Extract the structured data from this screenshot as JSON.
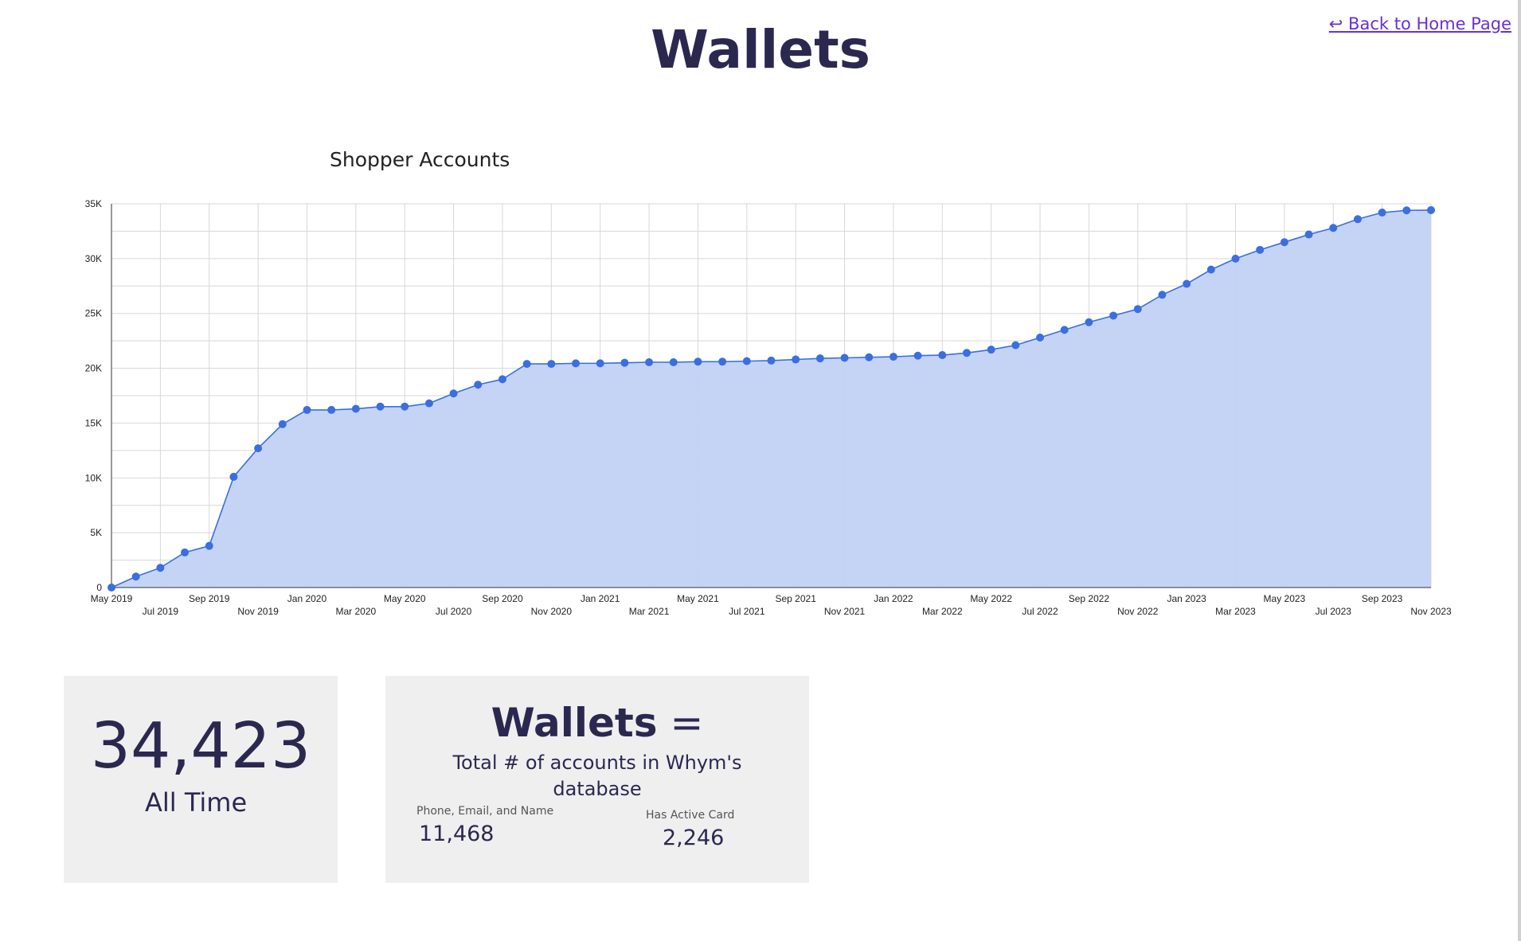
{
  "page": {
    "title": "Wallets",
    "back_link": "↩ Back to Home Page"
  },
  "colors": {
    "title": "#2b2850",
    "link": "#6b2fd6",
    "series_line": "#3a6fe0",
    "series_fill": "#c2d2f4",
    "card_bg": "#efeff0"
  },
  "chart_data": {
    "type": "area",
    "title": "Shopper Accounts",
    "x": [
      "May 2019",
      "Jun 2019",
      "Jul 2019",
      "Aug 2019",
      "Sep 2019",
      "Oct 2019",
      "Nov 2019",
      "Dec 2019",
      "Jan 2020",
      "Feb 2020",
      "Mar 2020",
      "Apr 2020",
      "May 2020",
      "Jun 2020",
      "Jul 2020",
      "Aug 2020",
      "Sep 2020",
      "Oct 2020",
      "Nov 2020",
      "Dec 2020",
      "Jan 2021",
      "Feb 2021",
      "Mar 2021",
      "Apr 2021",
      "May 2021",
      "Jun 2021",
      "Jul 2021",
      "Aug 2021",
      "Sep 2021",
      "Oct 2021",
      "Nov 2021",
      "Dec 2021",
      "Jan 2022",
      "Feb 2022",
      "Mar 2022",
      "Apr 2022",
      "May 2022",
      "Jun 2022",
      "Jul 2022",
      "Aug 2022",
      "Sep 2022",
      "Oct 2022",
      "Nov 2022",
      "Dec 2022",
      "Jan 2023",
      "Feb 2023",
      "Mar 2023",
      "Apr 2023",
      "May 2023",
      "Jun 2023",
      "Jul 2023",
      "Aug 2023",
      "Sep 2023",
      "Oct 2023",
      "Nov 2023"
    ],
    "series": [
      {
        "values": [
          0,
          1000,
          1800,
          3200,
          3800,
          10100,
          12700,
          14900,
          16200,
          16200,
          16300,
          16500,
          16500,
          16800,
          17700,
          18500,
          19000,
          20400,
          20400,
          20450,
          20450,
          20500,
          20550,
          20550,
          20600,
          20600,
          20650,
          20700,
          20800,
          20900,
          20950,
          21000,
          21050,
          21150,
          21200,
          21400,
          21700,
          22100,
          22800,
          23500,
          24200,
          24800,
          25400,
          26700,
          27700,
          29000,
          30000,
          30800,
          31500,
          32200,
          32800,
          33600,
          34200,
          34400,
          34423
        ]
      }
    ],
    "x_tick_labels_row1": [
      "May 2019",
      "Sep 2019",
      "Jan 2020",
      "May 2020",
      "Sep 2020",
      "Jan 2021",
      "May 2021",
      "Sep 2021",
      "Jan 2022",
      "May 2022",
      "Sep 2022",
      "Jan 2023",
      "May 2023",
      "Sep 2023"
    ],
    "x_tick_labels_row2": [
      "Jul 2019",
      "Nov 2019",
      "Mar 2020",
      "Jul 2020",
      "Nov 2020",
      "Mar 2021",
      "Jul 2021",
      "Nov 2021",
      "Mar 2022",
      "Jul 2022",
      "Nov 2022",
      "Mar 2023",
      "Jul 2023",
      "Nov 2023"
    ],
    "y_ticks": [
      0,
      5000,
      10000,
      15000,
      20000,
      25000,
      30000,
      35000
    ],
    "y_tick_labels": [
      "0",
      "5K",
      "10K",
      "15K",
      "20K",
      "25K",
      "30K",
      "35K"
    ],
    "ylim": [
      0,
      35000
    ],
    "grid": true,
    "legend": "none"
  },
  "total_card": {
    "value": "34,423",
    "label": "All Time"
  },
  "definition_card": {
    "heading_bold": "Wallets",
    "heading_rest": " =",
    "text": "Total # of accounts in Whym's database",
    "metric1_label": "Phone, Email, and Name",
    "metric1_value": "11,468",
    "metric2_label": "Has Active Card",
    "metric2_value": "2,246"
  }
}
